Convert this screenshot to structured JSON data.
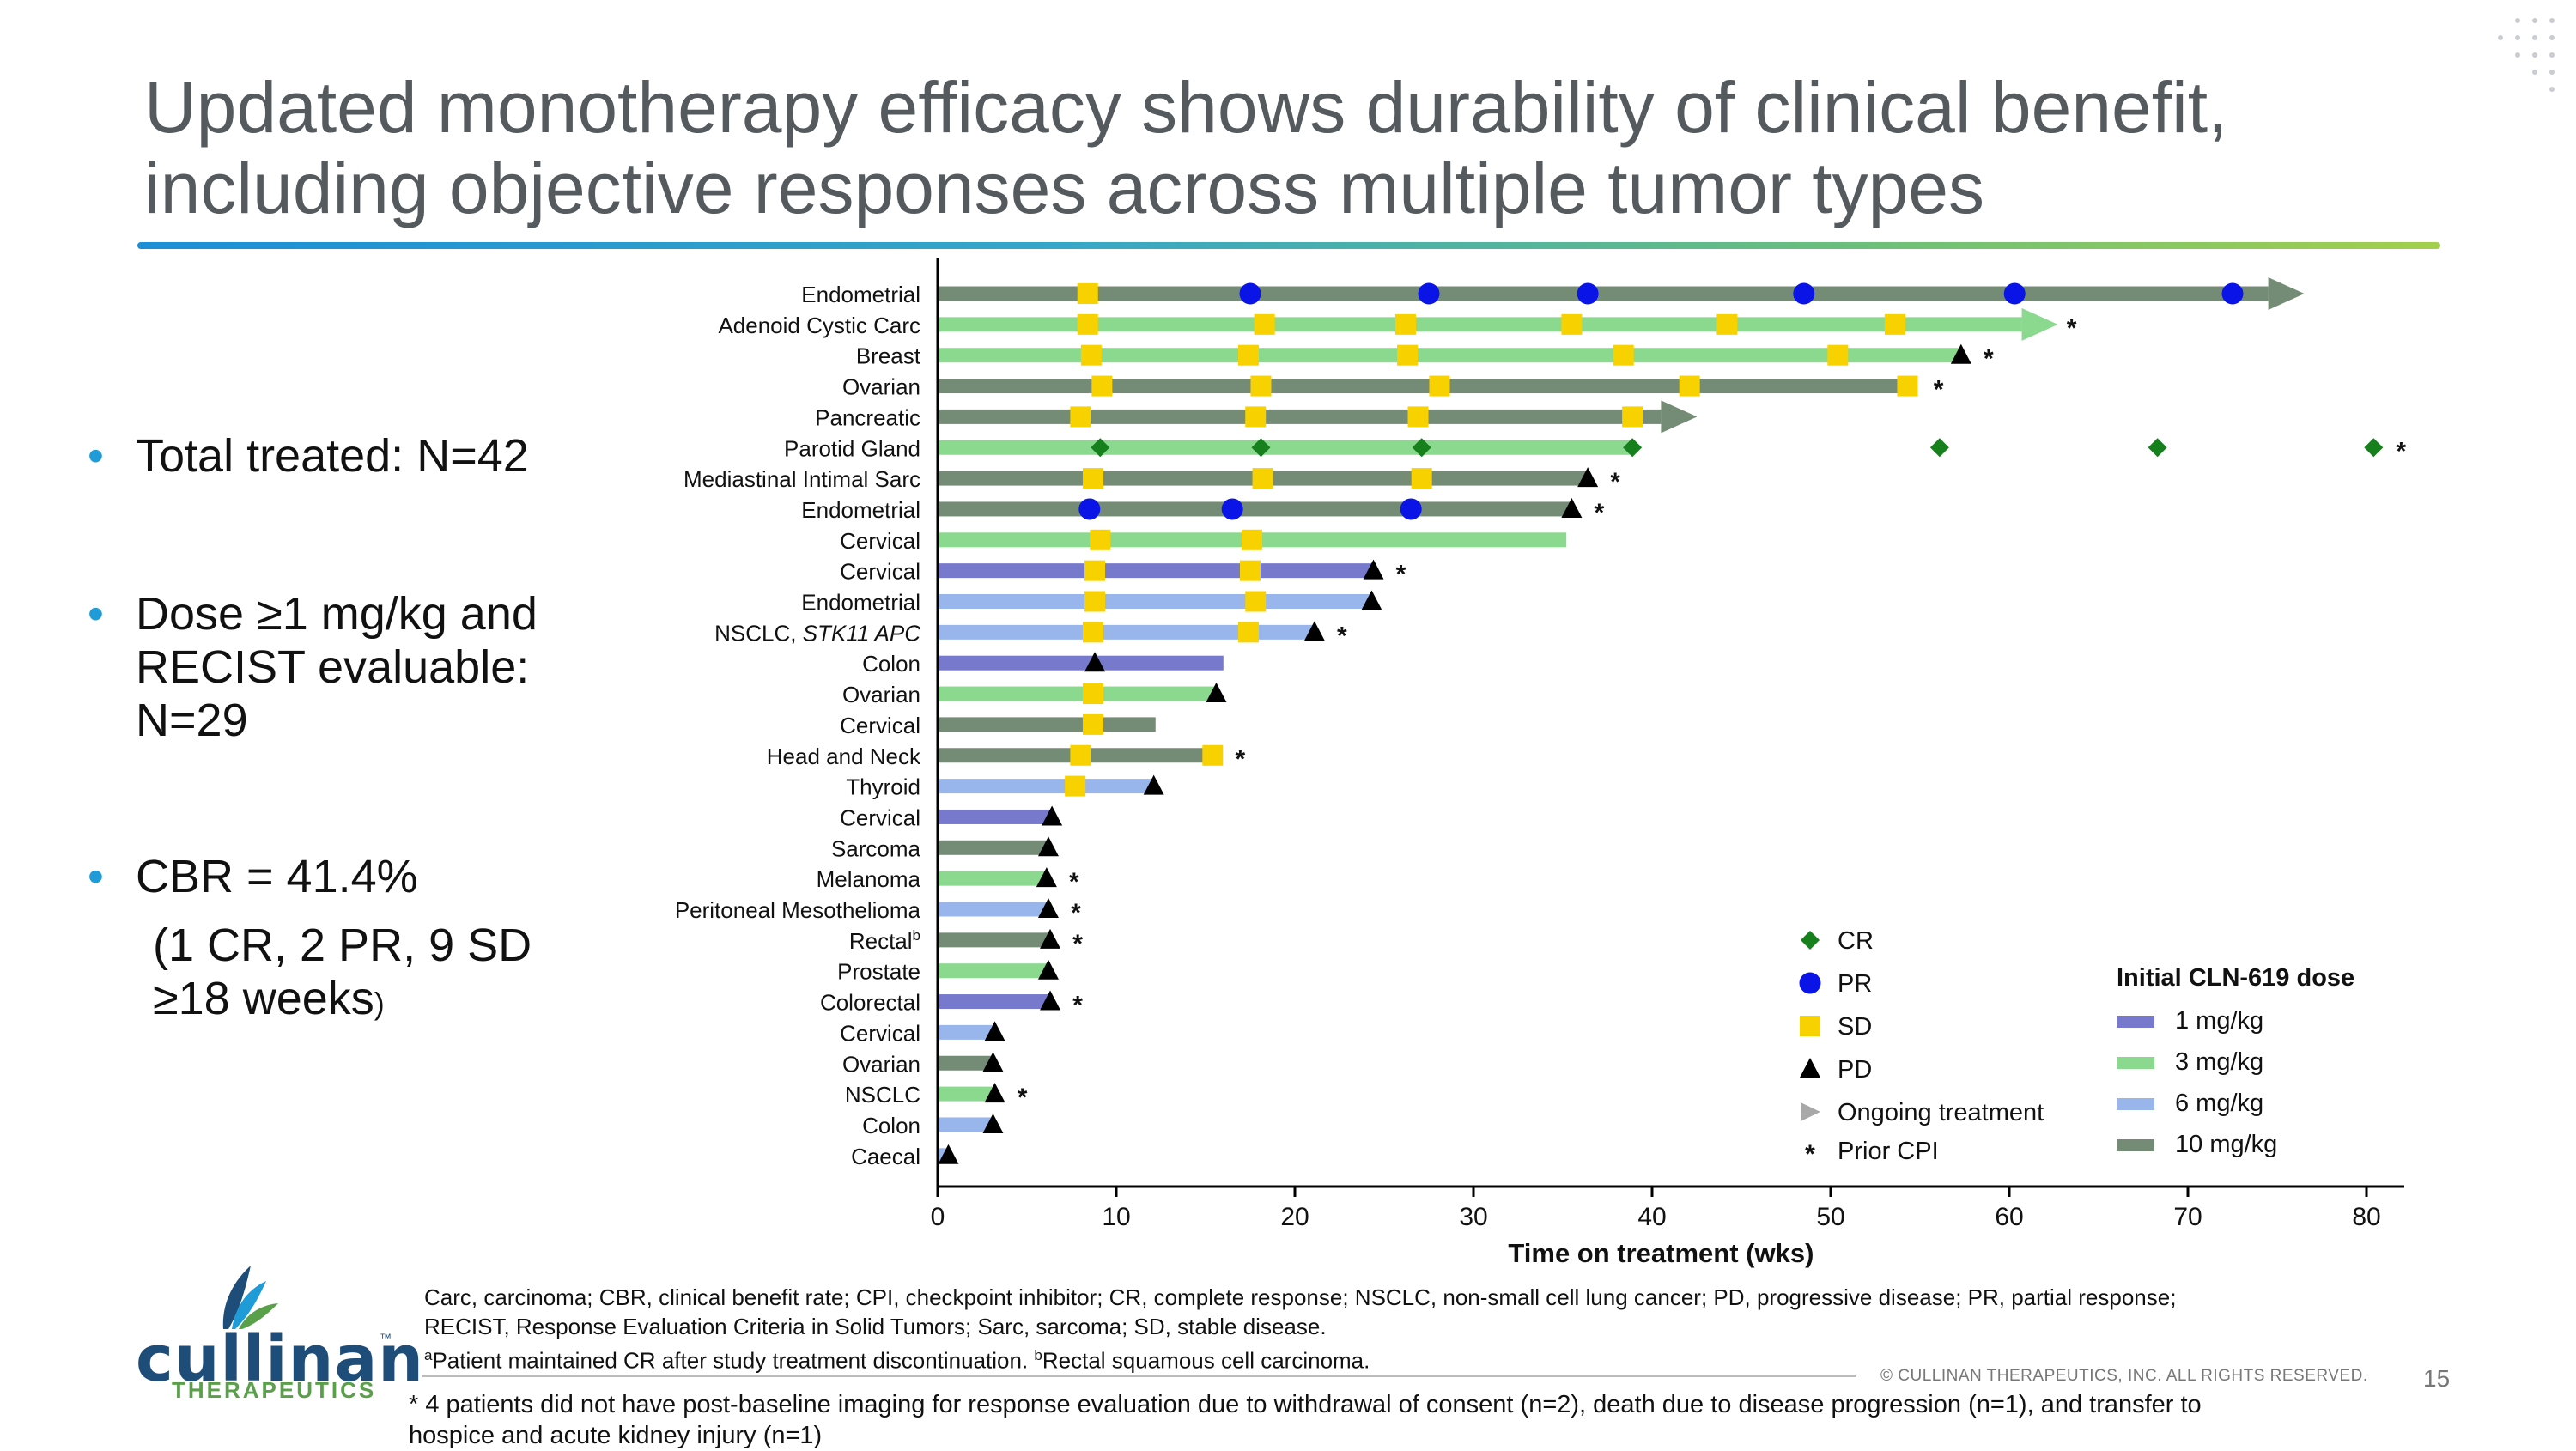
{
  "slide": {
    "title_line1": "Updated monotherapy efficacy shows durability of clinical benefit,",
    "title_line2": "including objective responses across multiple tumor types",
    "page_number": "15",
    "copyright": "© CULLINAN THERAPEUTICS, INC. ALL RIGHTS RESERVED."
  },
  "logo": {
    "name": "cullinan",
    "tm": "™",
    "sub": "THERAPEUTICS",
    "accent_colors": [
      "#1e4d7a",
      "#5aa04a",
      "#1f9bd7"
    ]
  },
  "bullets": {
    "b1": "Total treated: N=42",
    "b2_l1": "Dose ≥1 mg/kg and",
    "b2_l2": "RECIST evaluable:",
    "b2_l3": "N=29",
    "b3_l1": "CBR = 41.4%",
    "b3_l2": "(1 CR, 2 PR, 9 SD",
    "b3_l3": "≥18 weeks",
    "b3_close": ")"
  },
  "footnotes": {
    "line1": "Carc, carcinoma; CBR, clinical benefit rate; CPI, checkpoint inhibitor; CR, complete response; NSCLC, non-small cell lung cancer; PD, progressive disease; PR, partial response;",
    "line2": "RECIST, Response Evaluation Criteria in Solid Tumors; Sarc, sarcoma; SD, stable disease.",
    "line3a_sup": "a",
    "line3a": "Patient maintained CR after study treatment discontinuation. ",
    "line3b_sup": "b",
    "line3b": "Rectal squamous cell carcinoma.",
    "line4": "* 4 patients did not have post-baseline imaging for response evaluation due to withdrawal of consent (n=2), death due to disease progression (n=1), and transfer to",
    "line5": "hospice and acute kidney injury (n=1)"
  },
  "chart_data": {
    "type": "swimmer",
    "xlabel": "Time on treatment (wks)",
    "xlim": [
      0,
      82
    ],
    "xticks": [
      0,
      10,
      20,
      30,
      40,
      50,
      60,
      70,
      80
    ],
    "dose_colors": {
      "1 mg/kg": "#7679cc",
      "3 mg/kg": "#8ad98f",
      "6 mg/kg": "#98b6ec",
      "10 mg/kg": "#748c76"
    },
    "marker_colors": {
      "CR": "#15801c",
      "PR": "#0a14e6",
      "SD": "#f8d100",
      "PD": "#000000"
    },
    "legend_markers": [
      {
        "key": "CR",
        "label": "CR"
      },
      {
        "key": "PR",
        "label": "PR"
      },
      {
        "key": "SD",
        "label": "SD"
      },
      {
        "key": "PD",
        "label": "PD"
      },
      {
        "key": "ongoing",
        "label": "Ongoing treatment"
      },
      {
        "key": "cpi",
        "label": "Prior CPI"
      }
    ],
    "legend_dose_title": "Initial CLN-619 dose",
    "legend_doses": [
      "1 mg/kg",
      "3 mg/kg",
      "6 mg/kg",
      "10 mg/kg"
    ],
    "patients": [
      {
        "label": "Endometrial",
        "dose": "10 mg/kg",
        "duration": 74.5,
        "ongoing": true,
        "cpi": false,
        "markers": [
          [
            "SD",
            8.4
          ],
          [
            "PR",
            17.5
          ],
          [
            "PR",
            27.5
          ],
          [
            "PR",
            36.4
          ],
          [
            "PR",
            48.5
          ],
          [
            "PR",
            60.3
          ],
          [
            "PR",
            72.5
          ]
        ]
      },
      {
        "label": "Adenoid Cystic Carc",
        "dose": "3 mg/kg",
        "duration": 60.7,
        "ongoing": true,
        "cpi": true,
        "markers": [
          [
            "SD",
            8.4
          ],
          [
            "SD",
            18.3
          ],
          [
            "SD",
            26.2
          ],
          [
            "SD",
            35.5
          ],
          [
            "SD",
            44.2
          ],
          [
            "SD",
            53.6
          ]
        ]
      },
      {
        "label": "Breast",
        "dose": "3 mg/kg",
        "duration": 57.3,
        "ongoing": false,
        "cpi": true,
        "markers": [
          [
            "SD",
            8.6
          ],
          [
            "SD",
            17.4
          ],
          [
            "SD",
            26.3
          ],
          [
            "SD",
            38.4
          ],
          [
            "SD",
            50.4
          ],
          [
            "PD",
            57.3
          ]
        ]
      },
      {
        "label": "Ovarian",
        "dose": "10 mg/kg",
        "duration": 54.5,
        "ongoing": false,
        "cpi": true,
        "markers": [
          [
            "SD",
            9.2
          ],
          [
            "SD",
            18.1
          ],
          [
            "SD",
            28.1
          ],
          [
            "SD",
            42.1
          ],
          [
            "SD",
            54.3
          ]
        ]
      },
      {
        "label": "Pancreatic",
        "dose": "10 mg/kg",
        "duration": 40.5,
        "ongoing": true,
        "cpi": false,
        "markers": [
          [
            "SD",
            8.0
          ],
          [
            "SD",
            17.8
          ],
          [
            "SD",
            26.9
          ],
          [
            "SD",
            38.9
          ]
        ]
      },
      {
        "label": "Parotid Gland",
        "dose": "3 mg/kg",
        "duration": 38.9,
        "ongoing": false,
        "cpi": true,
        "markers": [
          [
            "CR",
            9.1
          ],
          [
            "CR",
            18.1
          ],
          [
            "CR",
            27.1
          ],
          [
            "CR",
            38.9
          ],
          [
            "CR",
            56.1
          ],
          [
            "CR",
            68.3
          ],
          [
            "CR",
            80.4
          ]
        ]
      },
      {
        "label": "Mediastinal Intimal Sarc",
        "dose": "10 mg/kg",
        "duration": 36.4,
        "ongoing": false,
        "cpi": true,
        "markers": [
          [
            "SD",
            8.7
          ],
          [
            "SD",
            18.2
          ],
          [
            "SD",
            27.1
          ],
          [
            "PD",
            36.4
          ]
        ]
      },
      {
        "label": "Endometrial",
        "dose": "10 mg/kg",
        "duration": 35.5,
        "ongoing": false,
        "cpi": true,
        "markers": [
          [
            "PR",
            8.5
          ],
          [
            "PR",
            16.5
          ],
          [
            "PR",
            26.5
          ],
          [
            "PD",
            35.5
          ]
        ]
      },
      {
        "label": "Cervical",
        "dose": "3 mg/kg",
        "duration": 35.2,
        "ongoing": false,
        "cpi": false,
        "markers": [
          [
            "SD",
            9.1
          ],
          [
            "SD",
            17.6
          ]
        ]
      },
      {
        "label": "Cervical",
        "dose": "1 mg/kg",
        "duration": 24.4,
        "ongoing": false,
        "cpi": true,
        "markers": [
          [
            "SD",
            8.8
          ],
          [
            "SD",
            17.5
          ],
          [
            "PD",
            24.4
          ]
        ]
      },
      {
        "label": "Endometrial",
        "dose": "6 mg/kg",
        "duration": 24.3,
        "ongoing": false,
        "cpi": false,
        "markers": [
          [
            "SD",
            8.8
          ],
          [
            "SD",
            17.8
          ],
          [
            "PD",
            24.3
          ]
        ]
      },
      {
        "label": "NSCLC, STK11 APC",
        "dose": "6 mg/kg",
        "duration": 21.1,
        "ongoing": false,
        "cpi": true,
        "markers": [
          [
            "SD",
            8.7
          ],
          [
            "SD",
            17.4
          ],
          [
            "PD",
            21.1
          ]
        ]
      },
      {
        "label": "Colon",
        "dose": "1 mg/kg",
        "duration": 16.0,
        "ongoing": false,
        "cpi": false,
        "markers": [
          [
            "PD",
            8.8
          ]
        ]
      },
      {
        "label": "Ovarian",
        "dose": "3 mg/kg",
        "duration": 15.6,
        "ongoing": false,
        "cpi": false,
        "markers": [
          [
            "SD",
            8.7
          ],
          [
            "PD",
            15.6
          ]
        ]
      },
      {
        "label": "Cervical",
        "dose": "10 mg/kg",
        "duration": 12.2,
        "ongoing": false,
        "cpi": false,
        "markers": [
          [
            "SD",
            8.7
          ]
        ]
      },
      {
        "label": "Head and Neck",
        "dose": "10 mg/kg",
        "duration": 15.4,
        "ongoing": false,
        "cpi": true,
        "markers": [
          [
            "SD",
            8.0
          ],
          [
            "SD",
            15.4
          ]
        ]
      },
      {
        "label": "Thyroid",
        "dose": "6 mg/kg",
        "duration": 12.1,
        "ongoing": false,
        "cpi": false,
        "markers": [
          [
            "SD",
            7.7
          ],
          [
            "PD",
            12.1
          ]
        ]
      },
      {
        "label": "Cervical",
        "dose": "1 mg/kg",
        "duration": 6.4,
        "ongoing": false,
        "cpi": false,
        "markers": [
          [
            "PD",
            6.4
          ]
        ]
      },
      {
        "label": "Sarcoma",
        "dose": "10 mg/kg",
        "duration": 6.2,
        "ongoing": false,
        "cpi": false,
        "markers": [
          [
            "PD",
            6.2
          ]
        ]
      },
      {
        "label": "Melanoma",
        "dose": "3 mg/kg",
        "duration": 6.1,
        "ongoing": false,
        "cpi": true,
        "markers": [
          [
            "PD",
            6.1
          ]
        ]
      },
      {
        "label": "Peritoneal Mesothelioma",
        "dose": "6 mg/kg",
        "duration": 6.2,
        "ongoing": false,
        "cpi": true,
        "markers": [
          [
            "PD",
            6.2
          ]
        ]
      },
      {
        "label": "Rectal",
        "sup": "b",
        "dose": "10 mg/kg",
        "duration": 6.3,
        "ongoing": false,
        "cpi": true,
        "markers": [
          [
            "PD",
            6.3
          ]
        ]
      },
      {
        "label": "Prostate",
        "dose": "3 mg/kg",
        "duration": 6.2,
        "ongoing": false,
        "cpi": false,
        "markers": [
          [
            "PD",
            6.2
          ]
        ]
      },
      {
        "label": "Colorectal",
        "dose": "1 mg/kg",
        "duration": 6.3,
        "ongoing": false,
        "cpi": true,
        "markers": [
          [
            "PD",
            6.3
          ]
        ]
      },
      {
        "label": "Cervical",
        "dose": "6 mg/kg",
        "duration": 3.2,
        "ongoing": false,
        "cpi": false,
        "markers": [
          [
            "PD",
            3.2
          ]
        ]
      },
      {
        "label": "Ovarian",
        "dose": "10 mg/kg",
        "duration": 3.1,
        "ongoing": false,
        "cpi": false,
        "markers": [
          [
            "PD",
            3.1
          ]
        ]
      },
      {
        "label": "NSCLC",
        "dose": "3 mg/kg",
        "duration": 3.2,
        "ongoing": false,
        "cpi": true,
        "markers": [
          [
            "PD",
            3.2
          ]
        ]
      },
      {
        "label": "Colon",
        "dose": "6 mg/kg",
        "duration": 3.1,
        "ongoing": false,
        "cpi": false,
        "markers": [
          [
            "PD",
            3.1
          ]
        ]
      },
      {
        "label": "Caecal",
        "dose": "6 mg/kg",
        "duration": 0.6,
        "ongoing": false,
        "cpi": false,
        "markers": [
          [
            "PD",
            0.6
          ]
        ]
      }
    ]
  }
}
